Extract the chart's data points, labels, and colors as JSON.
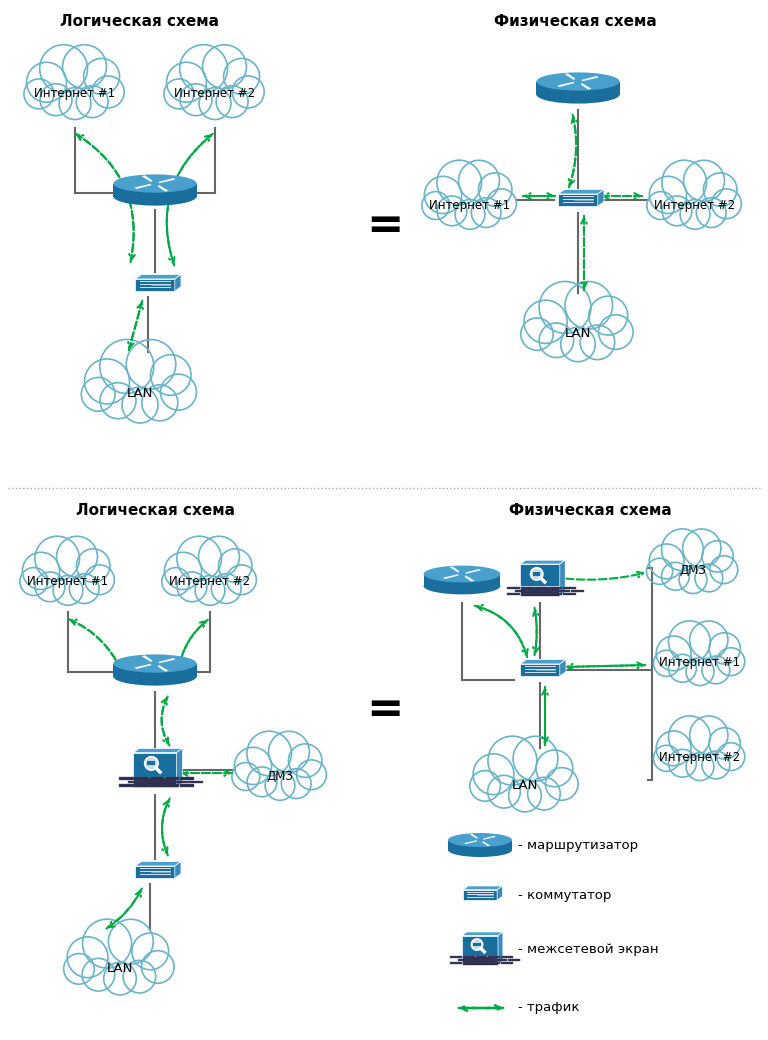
{
  "bg_color": "#ffffff",
  "line_color": "#666666",
  "cloud_stroke": "#6ab4c8",
  "device_color": "#1a6e9e",
  "device_light": "#3a8abe",
  "device_top": "#4aa0cc",
  "traffic_color": "#00aa44",
  "title1": "Логическая схема",
  "title2": "Физическая схема",
  "title3": "Логическая схема",
  "title4": "Физическая схема",
  "legend_router": "- маршрутизатор",
  "legend_switch": "- коммутатор",
  "legend_firewall": "- межсетевой экран",
  "legend_traffic": "- трафик",
  "label_inet1": "Интернет #1",
  "label_inet2": "Интернет #2",
  "label_lan": "LAN",
  "label_dmz": "ДМЗ"
}
